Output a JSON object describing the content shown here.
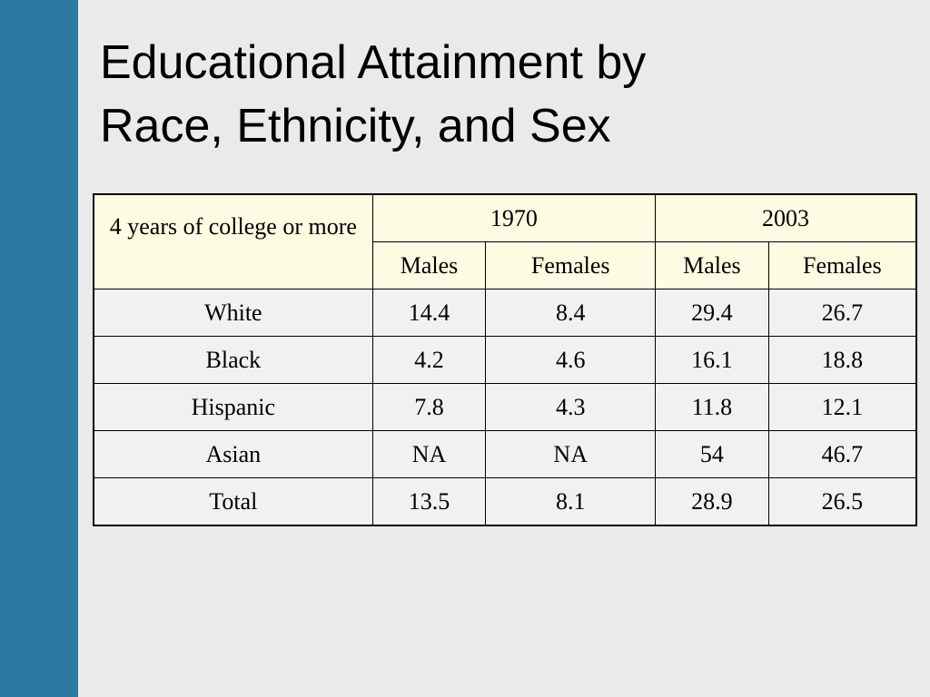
{
  "title": [
    "Educational Attainment by",
    "Race, Ethnicity, and Sex"
  ],
  "table": {
    "corner": "4 years of college or more",
    "years": [
      "1970",
      "2003"
    ],
    "subheaders": [
      "Males",
      "Females",
      "Males",
      "Females"
    ],
    "rows": [
      [
        "White",
        14.4,
        8.4,
        29.4,
        26.7
      ],
      [
        "Black",
        4.2,
        4.6,
        16.1,
        18.8
      ],
      [
        "Hispanic",
        7.8,
        4.3,
        11.8,
        12.1
      ],
      [
        "Asian",
        "NA",
        "NA",
        54,
        46.7
      ],
      [
        "Total",
        13.5,
        8.1,
        28.9,
        26.5
      ]
    ]
  }
}
